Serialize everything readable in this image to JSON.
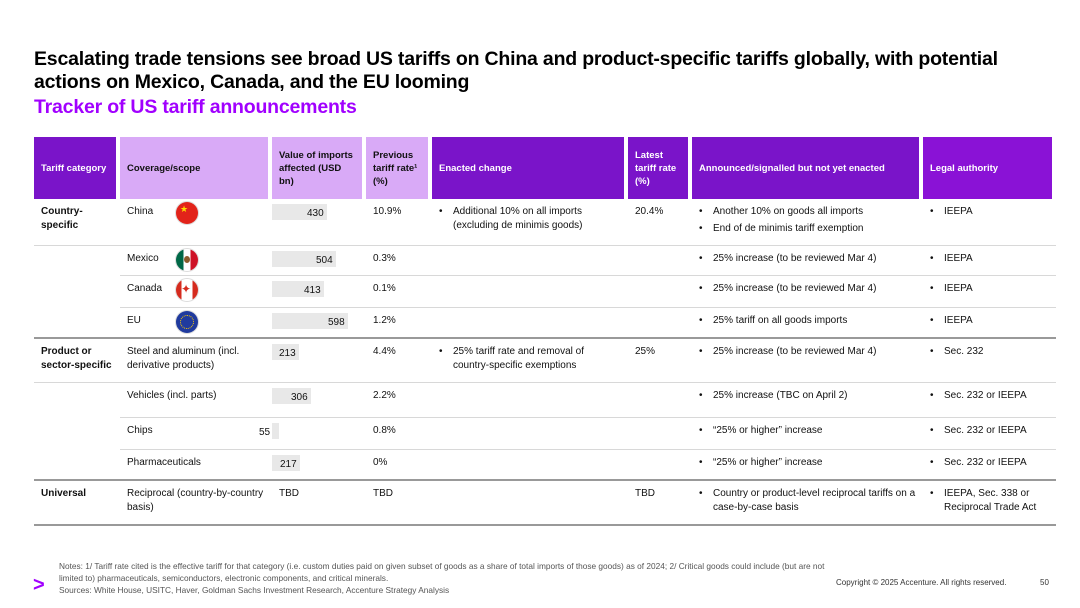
{
  "title": "Escalating trade tensions see broad US tariffs on China and product-specific tariffs globally, with potential actions on Mexico, Canada, and the EU looming",
  "subtitle": "Tracker of US tariff announcements",
  "headers": {
    "category": "Tariff category",
    "coverage": "Coverage/scope",
    "value": "Value of imports affected (USD bn)",
    "previous": "Previous tariff rate¹ (%)",
    "enacted": "Enacted change",
    "latest": "Latest tariff rate (%)",
    "announced": "Announced/signalled but not yet enacted",
    "legal": "Legal authority"
  },
  "colors": {
    "accent": "#a100ff",
    "header_light": "#d9aaf7",
    "header_dark": "#7a14c9"
  },
  "rows": [
    {
      "category": "Country-specific",
      "coverage": "China",
      "flag": "china-flag-icon",
      "value": 430,
      "value_label": "430",
      "previous": "10.9%",
      "enacted": [
        "Additional 10% on all imports (excluding de minimis goods)"
      ],
      "latest": "20.4%",
      "announced": [
        "Another 10% on goods all imports",
        "End of de minimis tariff exemption"
      ],
      "legal": [
        "IEEPA"
      ]
    },
    {
      "category": "",
      "coverage": "Mexico",
      "flag": "mexico-flag-icon",
      "value": 504,
      "value_label": "504",
      "previous": "0.3%",
      "enacted": [],
      "latest": "",
      "announced": [
        "25% increase (to be reviewed Mar 4)"
      ],
      "legal": [
        "IEEPA"
      ]
    },
    {
      "category": "",
      "coverage": "Canada",
      "flag": "canada-flag-icon",
      "value": 413,
      "value_label": "413",
      "previous": "0.1%",
      "enacted": [],
      "latest": "",
      "announced": [
        "25% increase (to be reviewed Mar 4)"
      ],
      "legal": [
        "IEEPA"
      ]
    },
    {
      "category": "",
      "coverage": "EU",
      "flag": "eu-flag-icon",
      "value": 598,
      "value_label": "598",
      "previous": "1.2%",
      "enacted": [],
      "latest": "",
      "announced": [
        "25% tariff on all goods imports"
      ],
      "legal": [
        "IEEPA"
      ]
    },
    {
      "category": "Product or sector-specific",
      "coverage": "Steel and aluminum (incl. derivative products)",
      "value": 213,
      "value_label": "213",
      "previous": "4.4%",
      "enacted": [
        "25% tariff rate and removal of country-specific exemptions"
      ],
      "latest": "25%",
      "announced": [
        "25% increase (to be reviewed Mar 4)"
      ],
      "legal": [
        "Sec. 232"
      ]
    },
    {
      "category": "",
      "coverage": "Vehicles (incl. parts)",
      "value": 306,
      "value_label": "306",
      "previous": "2.2%",
      "enacted": [],
      "latest": "",
      "announced": [
        "25% increase (TBC on April 2)"
      ],
      "legal": [
        "Sec. 232 or IEEPA"
      ]
    },
    {
      "category": "",
      "coverage": "Chips",
      "value": 55,
      "value_label": "55",
      "previous": "0.8%",
      "enacted": [],
      "latest": "",
      "announced": [
        "“25% or higher” increase"
      ],
      "legal": [
        "Sec. 232 or IEEPA"
      ]
    },
    {
      "category": "",
      "coverage": "Pharmaceuticals",
      "value": 217,
      "value_label": "217",
      "previous": "0%",
      "enacted": [],
      "latest": "",
      "announced": [
        "“25% or higher” increase"
      ],
      "legal": [
        "Sec. 232 or IEEPA"
      ]
    },
    {
      "category": "Universal",
      "coverage": "Reciprocal (country-by-country basis)",
      "value": null,
      "value_label": "TBD",
      "previous": "TBD",
      "enacted": [],
      "latest": "TBD",
      "announced": [
        "Country or product-level reciprocal tariffs on a case-by-case basis"
      ],
      "legal": [
        "IEEPA, Sec. 338 or Reciprocal Trade Act"
      ]
    }
  ],
  "bar_max": 598,
  "notes": "Notes: 1/ Tariff rate cited is the effective tariff for that category (i.e. custom duties paid on given subset of goods as a share of total imports of those goods) as of 2024; 2/ Critical goods could include (but are not limited to) pharmaceuticals, semiconductors, electronic components, and critical minerals.",
  "sources": "Sources: White House, USITC, Haver, Goldman Sachs Investment Research, Accenture Strategy Analysis",
  "logo": ">",
  "copyright": "Copyright © 2025 Accenture. All rights reserved.",
  "page_number": "50"
}
